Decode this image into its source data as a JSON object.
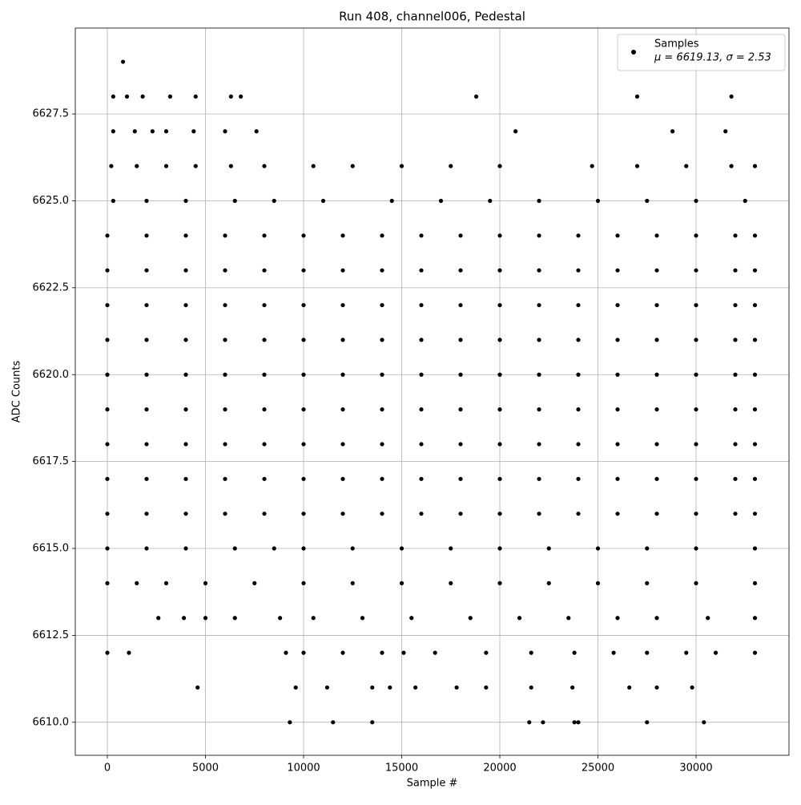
{
  "chart_data": {
    "type": "scatter",
    "title": "Run 408, channel006, Pedestal",
    "x_label": "Sample #",
    "y_label": "ADC Counts",
    "xlim": [
      -1633,
      34735
    ],
    "ylim": [
      6609.05,
      6629.97
    ],
    "xticks": [
      0,
      5000,
      10000,
      15000,
      20000,
      25000,
      30000
    ],
    "yticks": [
      {
        "value": 6610,
        "label": "6610.0"
      },
      {
        "value": 6612.5,
        "label": "6612.5"
      },
      {
        "value": 6615,
        "label": "6615.0"
      },
      {
        "value": 6617.5,
        "label": "6617.5"
      },
      {
        "value": 6620,
        "label": "6620.0"
      },
      {
        "value": 6622.5,
        "label": "6622.5"
      },
      {
        "value": 6625,
        "label": "6625.0"
      },
      {
        "value": 6627.5,
        "label": "6627.5"
      }
    ],
    "grid": true,
    "legend_position": "upper right",
    "legend_note": "μ = 6619.13, σ = 2.53",
    "series": [
      {
        "name": "Samples",
        "color": "#000000",
        "x": [
          800,
          300,
          1000,
          1800,
          3200,
          4500,
          6300,
          6800,
          18800,
          27000,
          31800,
          300,
          1400,
          2300,
          3000,
          4400,
          6000,
          7600,
          20800,
          28800,
          31500,
          200,
          1500,
          3000,
          4500,
          6300,
          8000,
          10500,
          12500,
          15000,
          17500,
          20000,
          24700,
          27000,
          29500,
          31800,
          33000,
          300,
          2000,
          4000,
          6500,
          8500,
          11000,
          14500,
          17000,
          19500,
          22000,
          25000,
          27500,
          30000,
          32500,
          0,
          2000,
          4000,
          6000,
          8000,
          10000,
          12000,
          14000,
          16000,
          18000,
          20000,
          22000,
          24000,
          26000,
          28000,
          30000,
          32000,
          33000,
          0,
          2000,
          4000,
          6000,
          8000,
          10000,
          12000,
          14000,
          16000,
          18000,
          20000,
          22000,
          24000,
          26000,
          28000,
          30000,
          32000,
          33000,
          0,
          2000,
          4000,
          6000,
          8000,
          10000,
          12000,
          14000,
          16000,
          18000,
          20000,
          22000,
          24000,
          26000,
          28000,
          30000,
          32000,
          33000,
          0,
          2000,
          4000,
          6000,
          8000,
          10000,
          12000,
          14000,
          16000,
          18000,
          20000,
          22000,
          24000,
          26000,
          28000,
          30000,
          32000,
          33000,
          0,
          2000,
          4000,
          6000,
          8000,
          10000,
          12000,
          14000,
          16000,
          18000,
          20000,
          22000,
          24000,
          26000,
          28000,
          30000,
          32000,
          33000,
          0,
          2000,
          4000,
          6000,
          8000,
          10000,
          12000,
          14000,
          16000,
          18000,
          20000,
          22000,
          24000,
          26000,
          28000,
          30000,
          32000,
          33000,
          0,
          2000,
          4000,
          6000,
          8000,
          10000,
          12000,
          14000,
          16000,
          18000,
          20000,
          22000,
          24000,
          26000,
          28000,
          30000,
          32000,
          33000,
          0,
          2000,
          4000,
          6000,
          8000,
          10000,
          12000,
          14000,
          16000,
          18000,
          20000,
          22000,
          24000,
          26000,
          28000,
          30000,
          32000,
          33000,
          0,
          2000,
          4000,
          6000,
          8000,
          10000,
          12000,
          14000,
          16000,
          18000,
          20000,
          22000,
          24000,
          26000,
          28000,
          30000,
          32000,
          33000,
          0,
          2000,
          4000,
          6500,
          8500,
          10000,
          12500,
          15000,
          17500,
          20000,
          22500,
          25000,
          27500,
          30000,
          33000,
          0,
          1500,
          3000,
          5000,
          7500,
          10000,
          12500,
          15000,
          17500,
          20000,
          22500,
          25000,
          27500,
          30000,
          33000,
          2600,
          3900,
          5000,
          6500,
          8800,
          10500,
          13000,
          15500,
          18500,
          21000,
          23500,
          26000,
          28000,
          30600,
          33000,
          0,
          1100,
          9100,
          10000,
          12000,
          14000,
          15100,
          16700,
          19300,
          21600,
          23800,
          25800,
          27500,
          29500,
          31000,
          33000,
          4600,
          9600,
          11200,
          13500,
          14400,
          15700,
          17800,
          19300,
          21600,
          23700,
          26600,
          28000,
          29800,
          9300,
          11500,
          13500,
          21500,
          22200,
          23800,
          24000,
          27500,
          30400
        ],
        "values": [
          6629,
          6628,
          6628,
          6628,
          6628,
          6628,
          6628,
          6628,
          6628,
          6628,
          6628,
          6627,
          6627,
          6627,
          6627,
          6627,
          6627,
          6627,
          6627,
          6627,
          6627,
          6626,
          6626,
          6626,
          6626,
          6626,
          6626,
          6626,
          6626,
          6626,
          6626,
          6626,
          6626,
          6626,
          6626,
          6626,
          6626,
          6625,
          6625,
          6625,
          6625,
          6625,
          6625,
          6625,
          6625,
          6625,
          6625,
          6625,
          6625,
          6625,
          6625,
          6624,
          6624,
          6624,
          6624,
          6624,
          6624,
          6624,
          6624,
          6624,
          6624,
          6624,
          6624,
          6624,
          6624,
          6624,
          6624,
          6624,
          6624,
          6623,
          6623,
          6623,
          6623,
          6623,
          6623,
          6623,
          6623,
          6623,
          6623,
          6623,
          6623,
          6623,
          6623,
          6623,
          6623,
          6623,
          6623,
          6622,
          6622,
          6622,
          6622,
          6622,
          6622,
          6622,
          6622,
          6622,
          6622,
          6622,
          6622,
          6622,
          6622,
          6622,
          6622,
          6622,
          6622,
          6621,
          6621,
          6621,
          6621,
          6621,
          6621,
          6621,
          6621,
          6621,
          6621,
          6621,
          6621,
          6621,
          6621,
          6621,
          6621,
          6621,
          6621,
          6620,
          6620,
          6620,
          6620,
          6620,
          6620,
          6620,
          6620,
          6620,
          6620,
          6620,
          6620,
          6620,
          6620,
          6620,
          6620,
          6620,
          6620,
          6619,
          6619,
          6619,
          6619,
          6619,
          6619,
          6619,
          6619,
          6619,
          6619,
          6619,
          6619,
          6619,
          6619,
          6619,
          6619,
          6619,
          6619,
          6618,
          6618,
          6618,
          6618,
          6618,
          6618,
          6618,
          6618,
          6618,
          6618,
          6618,
          6618,
          6618,
          6618,
          6618,
          6618,
          6618,
          6618,
          6617,
          6617,
          6617,
          6617,
          6617,
          6617,
          6617,
          6617,
          6617,
          6617,
          6617,
          6617,
          6617,
          6617,
          6617,
          6617,
          6617,
          6617,
          6616,
          6616,
          6616,
          6616,
          6616,
          6616,
          6616,
          6616,
          6616,
          6616,
          6616,
          6616,
          6616,
          6616,
          6616,
          6616,
          6616,
          6616,
          6615,
          6615,
          6615,
          6615,
          6615,
          6615,
          6615,
          6615,
          6615,
          6615,
          6615,
          6615,
          6615,
          6615,
          6615,
          6614,
          6614,
          6614,
          6614,
          6614,
          6614,
          6614,
          6614,
          6614,
          6614,
          6614,
          6614,
          6614,
          6614,
          6614,
          6613,
          6613,
          6613,
          6613,
          6613,
          6613,
          6613,
          6613,
          6613,
          6613,
          6613,
          6613,
          6613,
          6613,
          6613,
          6612,
          6612,
          6612,
          6612,
          6612,
          6612,
          6612,
          6612,
          6612,
          6612,
          6612,
          6612,
          6612,
          6612,
          6612,
          6612,
          6611,
          6611,
          6611,
          6611,
          6611,
          6611,
          6611,
          6611,
          6611,
          6611,
          6611,
          6611,
          6611,
          6610,
          6610,
          6610,
          6610,
          6610,
          6610,
          6610,
          6610,
          6610
        ]
      }
    ]
  }
}
